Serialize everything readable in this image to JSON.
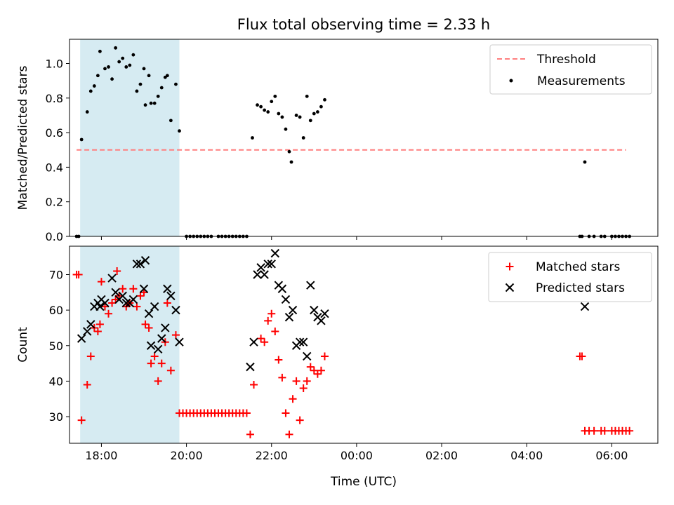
{
  "chart_data": [
    {
      "type": "scatter",
      "title": "Flux total observing time = 2.33 h",
      "xlabel": "",
      "ylabel": "Matched/Predicted stars",
      "x_unit": "hours (UTC, continuing past midnight)",
      "xlim": [
        "17:15",
        "07:05"
      ],
      "ylim": [
        0,
        1.14
      ],
      "yticks": [
        "0.0",
        "0.2",
        "0.4",
        "0.6",
        "0.8",
        "1.0"
      ],
      "xticks": [
        "18:00",
        "20:00",
        "22:00",
        "00:00",
        "02:00",
        "04:00",
        "06:00"
      ],
      "shaded_interval": [
        "17:30",
        "19:50"
      ],
      "shade_color": "#add8e6",
      "legend": "top-right",
      "grid": false,
      "threshold": {
        "name": "Threshold",
        "y": 0.5,
        "x_range": [
          "17:25",
          "06:20"
        ],
        "color": "#ff7f7f",
        "style": "dashed"
      },
      "series": [
        {
          "name": "Measurements",
          "color": "#000000",
          "marker": "dot",
          "points": [
            [
              "17:25",
              0
            ],
            [
              "17:28",
              0
            ],
            [
              "17:32",
              0.56
            ],
            [
              "17:40",
              0.72
            ],
            [
              "17:45",
              0.84
            ],
            [
              "17:50",
              0.87
            ],
            [
              "17:55",
              0.93
            ],
            [
              "17:58",
              1.07
            ],
            [
              "18:05",
              0.97
            ],
            [
              "18:10",
              0.98
            ],
            [
              "18:15",
              0.91
            ],
            [
              "18:20",
              1.09
            ],
            [
              "18:25",
              1.01
            ],
            [
              "18:30",
              1.03
            ],
            [
              "18:35",
              0.98
            ],
            [
              "18:40",
              0.99
            ],
            [
              "18:45",
              1.05
            ],
            [
              "18:50",
              0.84
            ],
            [
              "18:55",
              0.88
            ],
            [
              "19:00",
              0.97
            ],
            [
              "19:02",
              0.76
            ],
            [
              "19:07",
              0.93
            ],
            [
              "19:10",
              0.77
            ],
            [
              "19:15",
              0.77
            ],
            [
              "19:20",
              0.81
            ],
            [
              "19:25",
              0.86
            ],
            [
              "19:30",
              0.92
            ],
            [
              "19:33",
              0.93
            ],
            [
              "19:38",
              0.67
            ],
            [
              "19:45",
              0.88
            ],
            [
              "19:50",
              0.61
            ],
            [
              "20:00",
              0
            ],
            [
              "20:05",
              0
            ],
            [
              "20:10",
              0
            ],
            [
              "20:15",
              0
            ],
            [
              "20:20",
              0
            ],
            [
              "20:25",
              0
            ],
            [
              "20:30",
              0
            ],
            [
              "20:35",
              0
            ],
            [
              "20:45",
              0
            ],
            [
              "20:50",
              0
            ],
            [
              "20:55",
              0
            ],
            [
              "21:00",
              0
            ],
            [
              "21:05",
              0
            ],
            [
              "21:10",
              0
            ],
            [
              "21:15",
              0
            ],
            [
              "21:20",
              0
            ],
            [
              "21:25",
              0
            ],
            [
              "21:33",
              0.57
            ],
            [
              "21:40",
              0.76
            ],
            [
              "21:45",
              0.75
            ],
            [
              "21:50",
              0.73
            ],
            [
              "21:55",
              0.72
            ],
            [
              "22:00",
              0.78
            ],
            [
              "22:05",
              0.81
            ],
            [
              "22:10",
              0.71
            ],
            [
              "22:15",
              0.69
            ],
            [
              "22:20",
              0.62
            ],
            [
              "22:25",
              0.49
            ],
            [
              "22:28",
              0.43
            ],
            [
              "22:35",
              0.7
            ],
            [
              "22:40",
              0.69
            ],
            [
              "22:45",
              0.57
            ],
            [
              "22:50",
              0.81
            ],
            [
              "22:55",
              0.67
            ],
            [
              "23:00",
              0.71
            ],
            [
              "23:05",
              0.72
            ],
            [
              "23:10",
              0.75
            ],
            [
              "23:15",
              0.79
            ],
            [
              "05:15",
              0
            ],
            [
              "05:18",
              0
            ],
            [
              "05:22",
              0.43
            ],
            [
              "05:28",
              0
            ],
            [
              "05:35",
              0
            ],
            [
              "05:45",
              0
            ],
            [
              "05:50",
              0
            ],
            [
              "06:00",
              0
            ],
            [
              "06:05",
              0
            ],
            [
              "06:10",
              0
            ],
            [
              "06:15",
              0
            ],
            [
              "06:20",
              0
            ],
            [
              "06:25",
              0
            ]
          ]
        }
      ]
    },
    {
      "type": "scatter",
      "title": "",
      "xlabel": "Time (UTC)",
      "ylabel": "Count",
      "x_unit": "hours (UTC, continuing past midnight)",
      "xlim": [
        "17:15",
        "07:05"
      ],
      "ylim": [
        22.5,
        78
      ],
      "yticks": [
        "30",
        "40",
        "50",
        "60",
        "70"
      ],
      "xticks": [
        "18:00",
        "20:00",
        "22:00",
        "00:00",
        "02:00",
        "04:00",
        "06:00"
      ],
      "shaded_interval": [
        "17:30",
        "19:50"
      ],
      "shade_color": "#add8e6",
      "legend": "top-right",
      "grid": false,
      "series": [
        {
          "name": "Matched stars",
          "color": "#ff0000",
          "marker": "plus",
          "points": [
            [
              "17:25",
              70
            ],
            [
              "17:28",
              70
            ],
            [
              "17:32",
              29
            ],
            [
              "17:40",
              39
            ],
            [
              "17:45",
              47
            ],
            [
              "17:50",
              55
            ],
            [
              "17:55",
              54
            ],
            [
              "17:58",
              56
            ],
            [
              "18:00",
              68
            ],
            [
              "18:05",
              61
            ],
            [
              "18:10",
              59
            ],
            [
              "18:15",
              62
            ],
            [
              "18:20",
              63
            ],
            [
              "18:22",
              71
            ],
            [
              "18:25",
              64
            ],
            [
              "18:30",
              66
            ],
            [
              "18:35",
              61
            ],
            [
              "18:40",
              62
            ],
            [
              "18:45",
              66
            ],
            [
              "18:50",
              61
            ],
            [
              "18:55",
              64
            ],
            [
              "19:00",
              65
            ],
            [
              "19:02",
              56
            ],
            [
              "19:07",
              55
            ],
            [
              "19:10",
              45
            ],
            [
              "19:15",
              47
            ],
            [
              "19:20",
              40
            ],
            [
              "19:25",
              45
            ],
            [
              "19:30",
              51
            ],
            [
              "19:33",
              62
            ],
            [
              "19:38",
              43
            ],
            [
              "19:45",
              53
            ],
            [
              "19:50",
              31
            ],
            [
              "19:55",
              31
            ],
            [
              "20:00",
              31
            ],
            [
              "20:05",
              31
            ],
            [
              "20:10",
              31
            ],
            [
              "20:15",
              31
            ],
            [
              "20:20",
              31
            ],
            [
              "20:25",
              31
            ],
            [
              "20:30",
              31
            ],
            [
              "20:35",
              31
            ],
            [
              "20:40",
              31
            ],
            [
              "20:45",
              31
            ],
            [
              "20:50",
              31
            ],
            [
              "20:55",
              31
            ],
            [
              "21:00",
              31
            ],
            [
              "21:05",
              31
            ],
            [
              "21:10",
              31
            ],
            [
              "21:15",
              31
            ],
            [
              "21:20",
              31
            ],
            [
              "21:25",
              31
            ],
            [
              "21:30",
              25
            ],
            [
              "21:35",
              39
            ],
            [
              "21:45",
              52
            ],
            [
              "21:50",
              51
            ],
            [
              "21:55",
              57
            ],
            [
              "22:00",
              59
            ],
            [
              "22:05",
              54
            ],
            [
              "22:10",
              46
            ],
            [
              "22:15",
              41
            ],
            [
              "22:20",
              31
            ],
            [
              "22:25",
              25
            ],
            [
              "22:30",
              35
            ],
            [
              "22:35",
              40
            ],
            [
              "22:40",
              29
            ],
            [
              "22:45",
              38
            ],
            [
              "22:50",
              40
            ],
            [
              "22:55",
              44
            ],
            [
              "23:00",
              43
            ],
            [
              "23:05",
              42
            ],
            [
              "23:10",
              43
            ],
            [
              "23:15",
              47
            ],
            [
              "05:15",
              47
            ],
            [
              "05:18",
              47
            ],
            [
              "05:22",
              26
            ],
            [
              "05:28",
              26
            ],
            [
              "05:35",
              26
            ],
            [
              "05:45",
              26
            ],
            [
              "05:50",
              26
            ],
            [
              "06:00",
              26
            ],
            [
              "06:05",
              26
            ],
            [
              "06:10",
              26
            ],
            [
              "06:15",
              26
            ],
            [
              "06:20",
              26
            ],
            [
              "06:25",
              26
            ]
          ]
        },
        {
          "name": "Predicted stars",
          "color": "#000000",
          "marker": "x",
          "points": [
            [
              "17:32",
              52
            ],
            [
              "17:40",
              54
            ],
            [
              "17:45",
              56
            ],
            [
              "17:50",
              61
            ],
            [
              "17:55",
              62
            ],
            [
              "17:58",
              61
            ],
            [
              "18:00",
              63
            ],
            [
              "18:05",
              62
            ],
            [
              "18:15",
              69
            ],
            [
              "18:20",
              65
            ],
            [
              "18:25",
              63
            ],
            [
              "18:30",
              64
            ],
            [
              "18:35",
              62
            ],
            [
              "18:40",
              62
            ],
            [
              "18:45",
              63
            ],
            [
              "18:50",
              73
            ],
            [
              "18:55",
              73
            ],
            [
              "19:00",
              66
            ],
            [
              "19:02",
              74
            ],
            [
              "19:07",
              59
            ],
            [
              "19:10",
              50
            ],
            [
              "19:15",
              61
            ],
            [
              "19:20",
              49
            ],
            [
              "19:25",
              52
            ],
            [
              "19:30",
              55
            ],
            [
              "19:33",
              66
            ],
            [
              "19:38",
              64
            ],
            [
              "19:45",
              60
            ],
            [
              "19:50",
              51
            ],
            [
              "21:30",
              44
            ],
            [
              "21:35",
              51
            ],
            [
              "21:40",
              70
            ],
            [
              "21:45",
              72
            ],
            [
              "21:50",
              70
            ],
            [
              "21:55",
              73
            ],
            [
              "22:00",
              73
            ],
            [
              "22:05",
              76
            ],
            [
              "22:10",
              67
            ],
            [
              "22:15",
              66
            ],
            [
              "22:20",
              63
            ],
            [
              "22:25",
              58
            ],
            [
              "22:30",
              60
            ],
            [
              "22:35",
              50
            ],
            [
              "22:40",
              51
            ],
            [
              "22:45",
              51
            ],
            [
              "22:50",
              47
            ],
            [
              "22:55",
              67
            ],
            [
              "23:00",
              60
            ],
            [
              "23:05",
              58
            ],
            [
              "23:10",
              57
            ],
            [
              "23:15",
              59
            ],
            [
              "05:22",
              61
            ]
          ]
        }
      ]
    }
  ]
}
